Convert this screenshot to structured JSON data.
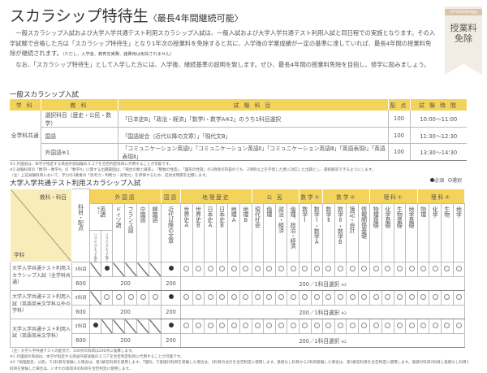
{
  "title": "スカラシップ特待生",
  "title_sub": "〈最長4年間継続可能〉",
  "intro": [
    "一般スカラシップ入試および大学入学共通テスト利用スカラシップ入試は、一般入試および大学入学共通テスト利用入試と同日程での実施となります。その入学試験で合格した方は「スカラシップ特待生」となり1年次の授業料を免除すると共に、入学後の学業成績が一定の基準に達していれば、最長4年間の授業料免除が継続されます。",
    "なお、「スカラシップ特待生」として入学した方には、入学後、継続基準の説明を致します。ぜひ、最長4年間の授業料免除を目指し、修学に励みましょう。"
  ],
  "intro_paren": "（ただし、入学金、教育充実費、諸費用は免除されません）",
  "badge": {
    "brand": "SATSUGAKU独自",
    "line1": "授業料",
    "line2": "免除"
  },
  "general": {
    "heading": "一般スカラシップ入試",
    "headers": [
      "学 科",
      "教 科",
      "試 験 科 目",
      "配 点",
      "試 験 時 間"
    ],
    "dept": "全学科共通",
    "rows": [
      {
        "subject": "選択科目（歴史・公民・数学）",
        "exam": "「日本史B」「政治・経済」「数学Ⅰ・数学A※2」のうち1科目選択",
        "points": "100",
        "time": "10:00〜11:00"
      },
      {
        "subject": "国語",
        "exam": "「国語総合（近代以降の文章）」「現代文B」",
        "points": "100",
        "time": "11:30〜12:30"
      },
      {
        "subject": "外国語※1",
        "exam": "「コミュニケーション英語Ⅰ」「コミュニケーション英語Ⅱ」「コミュニケーション英語Ⅲ」「英語表現Ⅰ」「英語表現Ⅱ」",
        "points": "100",
        "time": "13:30〜14:30"
      }
    ],
    "notes": [
      "※1 外国語は、本学が指定する英語外部試験のスコアを合否判定科目に代用することが可能です。",
      "※2 試験科目の「数学Ⅰ・数学A」の「数学A」に関する出題範囲は、「場合の数と確率」、「整数の性質」、「図形の性質」の3項目の内容のうち、2項目以上を学習した者に対応した出題とし、選択解答できるようにします。",
      "（注）上記試験科目において、学力の3要素の「思考力・判断力・表現力」を評価するため、記述式問題を出題します。"
    ]
  },
  "common": {
    "heading": "大学入学共通テスト利用スカラシップ入試",
    "legend": {
      "required": "必須",
      "optional": "選択"
    },
    "corner_top": "教科・科目",
    "corner_bottom": "学科",
    "count_header": "科目・配点",
    "groups": [
      {
        "name": "外国語",
        "span": 6
      },
      {
        "name": "国語",
        "span": 1
      },
      {
        "name": "地理歴史",
        "span": 6
      },
      {
        "name": "公 民",
        "span": 4
      },
      {
        "name": "数学①",
        "span": 2
      },
      {
        "name": "数学②",
        "span": 4
      },
      {
        "name": "理科①",
        "span": 4
      },
      {
        "name": "理科②",
        "span": 4
      }
    ],
    "english": {
      "label": "英語",
      "mark": "※1",
      "sub": [
        "リスニングテスト含む",
        "リスニングテスト除く"
      ]
    },
    "foreign_other": [
      "ドイツ語",
      "フランス語",
      "中国語",
      "韓国語"
    ],
    "kokugo": "近代以降の文章",
    "subjects": [
      "世界史A",
      "世界史B",
      "日本史A",
      "日本史B",
      "地理A",
      "地理B",
      "現代社会",
      "倫理",
      "政治・経済",
      "倫理、政治・経済",
      "数学Ⅰ",
      "数学Ⅰ・数学A",
      "数学Ⅱ",
      "数学Ⅱ・数学B",
      "簿記・会計",
      "情報関係基礎",
      "物理基礎",
      "化学基礎",
      "生物基礎",
      "地学基礎",
      "物理",
      "化学",
      "生物",
      "地学"
    ],
    "rows": [
      {
        "label": "大学入学共通テスト利用スカラシップ入試（全学科共通）",
        "count": "3科目",
        "total": "600",
        "foreign": [
          "slash",
          "required",
          "slash",
          "slash",
          "slash",
          "slash"
        ],
        "kokugo": "required",
        "others": "optional",
        "foreign_points": "200",
        "kokugo_points": "200",
        "others_points": "200／1科目選択",
        "note": "※2"
      },
      {
        "label": "大学入学共通テスト利用入試（英語英米文学科以外の学科）",
        "count": "3科目",
        "total": "600",
        "foreign": [
          "slash",
          "optional",
          "optional",
          "optional",
          "optional",
          "optional"
        ],
        "kokugo": "required",
        "others": "optional",
        "foreign_points": "200",
        "kokugo_points": "200",
        "others_points": "200／1科目選択",
        "note": "※2"
      },
      {
        "label": "大学入学共通テスト利用入試（英語英米文学科）",
        "count": "3科目",
        "total": "600",
        "foreign": [
          "required",
          "slash",
          "slash",
          "slash",
          "slash",
          "slash"
        ],
        "kokugo": "required",
        "others": "optional",
        "foreign_points": "200",
        "kokugo_points": "200",
        "others_points": "200／1科目選択",
        "note": "※2"
      }
    ],
    "notes": [
      "（注）大学入学共通テストの配点で、100点の科目は200点に換算します。",
      "※1 外国語の英語は、本学が指定する英語外部試験のスコアを合否判定科目に代用することが可能です。",
      "※2「地理歴史、公民」で2科目を受験した場合は、第1解答科目を使用します。「理科」で基礎付科目を受験した場合は、2科目の合計を合否判定に使用します。基礎なし科目から2科目受験した場合は、第1解答科目を合否判定に使用します。基礎付科目2科目と基礎なし科目1科目を受験した場合は、いずれか高得点の科目を合否判定に使用します。"
    ]
  },
  "colors": {
    "header_yellow": "#f3d35a",
    "corner": "#f8ecb9",
    "badge": "#f3ece4"
  }
}
